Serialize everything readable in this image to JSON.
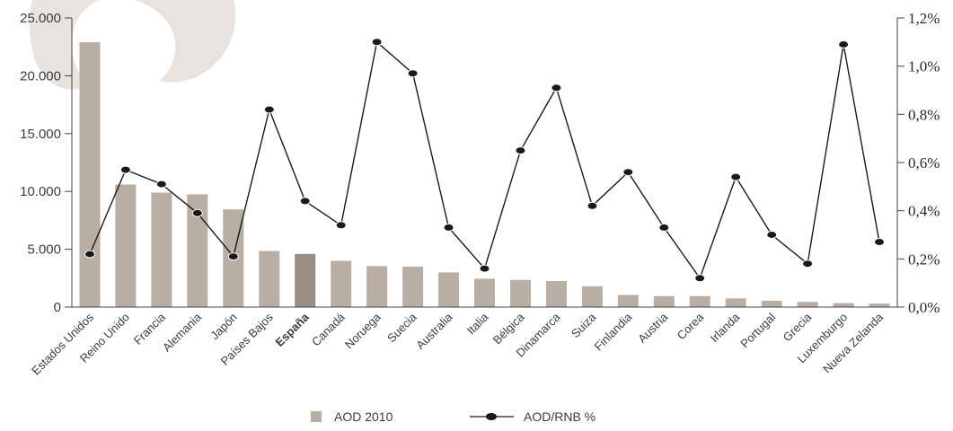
{
  "chart_data": {
    "type": "bar",
    "categories": [
      "Estados Unidos",
      "Reino Unido",
      "Francia",
      "Alemania",
      "Japón",
      "Países Bajos",
      "España",
      "Canadá",
      "Noruega",
      "Suecia",
      "Australia",
      "Italia",
      "Bélgica",
      "Dinamarca",
      "Suiza",
      "Finlandia",
      "Austria",
      "Corea",
      "Irlanda",
      "Portugal",
      "Grecia",
      "Luxemburgo",
      "Nueva Zelanda"
    ],
    "highlight_category": "España",
    "series": [
      {
        "name": "AOD 2010",
        "type": "bar",
        "axis": "left",
        "color": "#b8aea3",
        "highlight_color": "#9a8e84",
        "values": [
          22900,
          10600,
          9900,
          9750,
          8450,
          4850,
          4600,
          4000,
          3550,
          3500,
          3000,
          2450,
          2350,
          2250,
          1800,
          1050,
          950,
          950,
          750,
          550,
          450,
          350,
          300
        ]
      },
      {
        "name": "AOD/RNB %",
        "type": "line",
        "axis": "right",
        "color": "#1a1a1a",
        "values": [
          0.22,
          0.57,
          0.51,
          0.39,
          0.21,
          0.82,
          0.44,
          0.34,
          1.1,
          0.97,
          0.33,
          0.16,
          0.65,
          0.91,
          0.42,
          0.56,
          0.33,
          0.12,
          0.54,
          0.3,
          0.18,
          1.09,
          0.27
        ]
      }
    ],
    "y_left": {
      "ylim": [
        0,
        25000
      ],
      "ticks": [
        0,
        5000,
        10000,
        15000,
        20000,
        25000
      ],
      "tick_labels": [
        "0",
        "5.000",
        "10.000",
        "15.000",
        "20.000",
        "25.000"
      ]
    },
    "y_right": {
      "ylim": [
        0,
        1.2
      ],
      "ticks": [
        0,
        0.2,
        0.4,
        0.6,
        0.8,
        1.0,
        1.2
      ],
      "tick_labels": [
        "0,0%",
        "0,2%",
        "0,4%",
        "0,6%",
        "0,8%",
        "1,0%",
        "1,2%"
      ]
    },
    "grid": false,
    "legend_position": "bottom-center",
    "decoration_color": "#e8e3df"
  }
}
